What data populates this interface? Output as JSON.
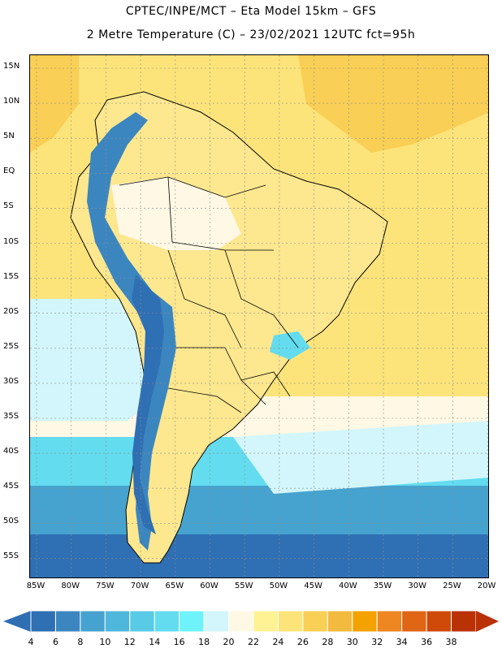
{
  "header": {
    "line1": "CPTEC/INPE/MCT –  Eta Model 15km – GFS",
    "line2": "2 Metre Temperature (C) – 23/02/2021 12UTC fct=95h"
  },
  "axes": {
    "lat_labels": [
      "15N",
      "10N",
      "5N",
      "EQ",
      "5S",
      "10S",
      "15S",
      "20S",
      "25S",
      "30S",
      "35S",
      "40S",
      "45S",
      "50S",
      "55S"
    ],
    "lon_labels": [
      "85W",
      "80W",
      "75W",
      "70W",
      "65W",
      "60W",
      "55W",
      "50W",
      "45W",
      "40W",
      "35W",
      "30W",
      "25W",
      "20W"
    ]
  },
  "colorbar": {
    "levels": [
      "4",
      "6",
      "8",
      "10",
      "12",
      "14",
      "16",
      "18",
      "20",
      "22",
      "24",
      "26",
      "28",
      "30",
      "32",
      "34",
      "36",
      "38"
    ],
    "colors": [
      "#2f6fb3",
      "#3c86c0",
      "#46a3cf",
      "#50b7dc",
      "#59cbe6",
      "#63dcef",
      "#6ff3fb",
      "#d2f6fb",
      "#fff8e4",
      "#fff294",
      "#fde47a",
      "#f9cf55",
      "#f2ba3f",
      "#f4a200",
      "#ee8622",
      "#e06515",
      "#cf4a08",
      "#b93104"
    ]
  },
  "map": {
    "colors": {
      "ocean_warm": "#fde47a",
      "ocean_hot": "#f9cf55",
      "land": "#fde78f",
      "land_pale": "#fff8e4",
      "ocean_cool": "#d2f6fb",
      "ocean_mid": "#63dcef",
      "ocean_cold": "#46a3cf",
      "ocean_colder": "#2f6fb3",
      "andes": "#3c86c0",
      "andes_high": "#2f6fb3",
      "border": "#000000"
    }
  }
}
